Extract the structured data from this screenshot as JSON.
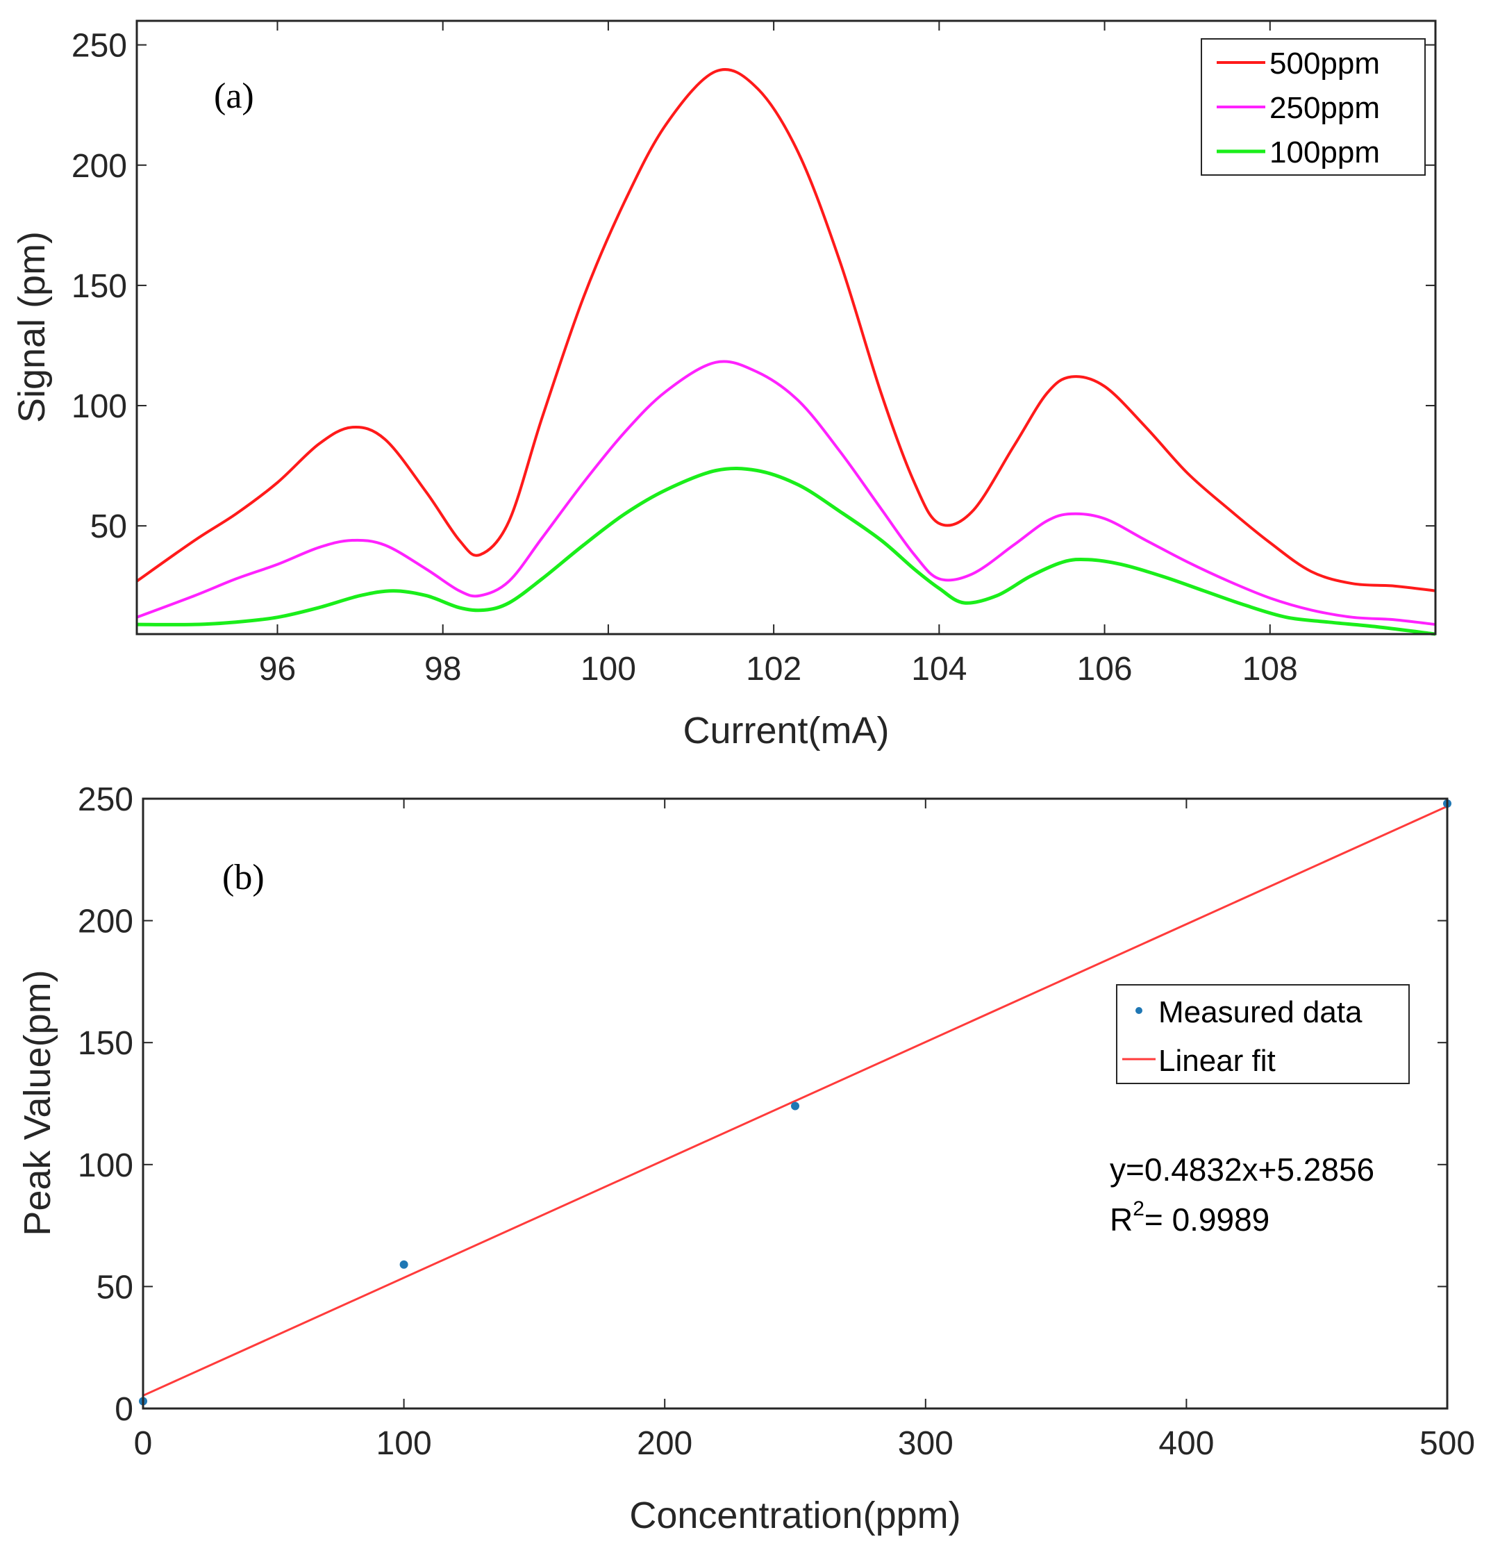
{
  "colors": {
    "series_500": "#ff1a1a",
    "series_250": "#ff22ff",
    "series_100": "#1aee1a",
    "measured": "#1f77b4",
    "fit": "#ff3b3b",
    "axis": "#262626"
  },
  "chart_data": [
    {
      "type": "line",
      "panel_label": "(a)",
      "title": "",
      "xlabel": "Current(mA)",
      "ylabel": "Signal (pm)",
      "xlim": [
        94.3,
        110.0
      ],
      "ylim": [
        5,
        260
      ],
      "xticks": [
        96,
        98,
        100,
        102,
        104,
        106,
        108
      ],
      "yticks": [
        50,
        100,
        150,
        200,
        250
      ],
      "legend_position": "top-right",
      "series": [
        {
          "name": "500ppm",
          "color_key": "series_500",
          "x": [
            94.3,
            95.0,
            95.5,
            96.0,
            96.5,
            96.9,
            97.3,
            97.8,
            98.2,
            98.45,
            98.8,
            99.2,
            99.7,
            100.2,
            100.7,
            101.3,
            101.8,
            102.3,
            102.8,
            103.3,
            103.7,
            104.0,
            104.4,
            104.9,
            105.3,
            105.6,
            106.0,
            106.5,
            107.0,
            107.5,
            108.0,
            108.5,
            109.0,
            109.5,
            110.0
          ],
          "y": [
            27,
            44,
            55,
            68,
            84,
            91,
            86,
            64,
            44,
            38,
            52,
            95,
            145,
            185,
            217,
            239,
            232,
            205,
            160,
            105,
            68,
            51,
            56,
            83,
            105,
            112,
            108,
            91,
            72,
            57,
            43,
            31,
            26,
            25,
            23
          ]
        },
        {
          "name": "250ppm",
          "color_key": "series_250",
          "x": [
            94.3,
            95.0,
            95.5,
            96.0,
            96.5,
            96.9,
            97.3,
            97.8,
            98.2,
            98.45,
            98.8,
            99.2,
            99.7,
            100.2,
            100.7,
            101.3,
            101.8,
            102.3,
            102.8,
            103.3,
            103.7,
            104.0,
            104.4,
            104.9,
            105.3,
            105.6,
            106.0,
            106.5,
            107.0,
            107.5,
            108.0,
            108.5,
            109.0,
            109.5,
            110.0
          ],
          "y": [
            12,
            21,
            28,
            34,
            41,
            44,
            42,
            32,
            23,
            21,
            27,
            45,
            68,
            89,
            106,
            118,
            114,
            102,
            81,
            57,
            38,
            28,
            30,
            42,
            52,
            55,
            53,
            44,
            35,
            27,
            20,
            15,
            12,
            11,
            9
          ]
        },
        {
          "name": "100ppm",
          "color_key": "series_100",
          "x": [
            94.3,
            95.0,
            95.5,
            96.0,
            96.5,
            97.0,
            97.4,
            97.8,
            98.2,
            98.5,
            98.8,
            99.2,
            99.7,
            100.2,
            100.7,
            101.3,
            101.8,
            102.3,
            102.8,
            103.3,
            103.7,
            104.0,
            104.3,
            104.7,
            105.1,
            105.5,
            105.8,
            106.2,
            106.7,
            107.2,
            107.7,
            108.2,
            108.7,
            109.3,
            110.0
          ],
          "y": [
            9,
            9,
            10,
            12,
            16,
            21,
            23,
            21,
            16,
            15,
            18,
            28,
            42,
            55,
            65,
            73,
            73,
            67,
            56,
            44,
            32,
            24,
            18,
            21,
            29,
            35,
            36,
            34,
            29,
            23,
            17,
            12,
            10,
            8,
            5
          ]
        }
      ]
    },
    {
      "type": "scatter",
      "panel_label": "(b)",
      "title": "",
      "xlabel": "Concentration(ppm)",
      "ylabel": "Peak Value(pm)",
      "xlim": [
        0,
        500
      ],
      "ylim": [
        0,
        250
      ],
      "xticks": [
        0,
        100,
        200,
        300,
        400,
        500
      ],
      "yticks": [
        0,
        50,
        100,
        150,
        200,
        250
      ],
      "legend_position": "center-right",
      "measured": {
        "name": "Measured data",
        "color_key": "measured",
        "x": [
          0,
          100,
          250,
          500
        ],
        "y": [
          3,
          59,
          124,
          248
        ]
      },
      "fit": {
        "name": "Linear fit",
        "color_key": "fit",
        "slope": 0.4832,
        "intercept": 5.2856
      },
      "annotation": {
        "equation": "y=0.4832x+5.2856",
        "r2_prefix": "R",
        "r2_sup": "2",
        "r2_value": "= 0.9989"
      }
    }
  ]
}
